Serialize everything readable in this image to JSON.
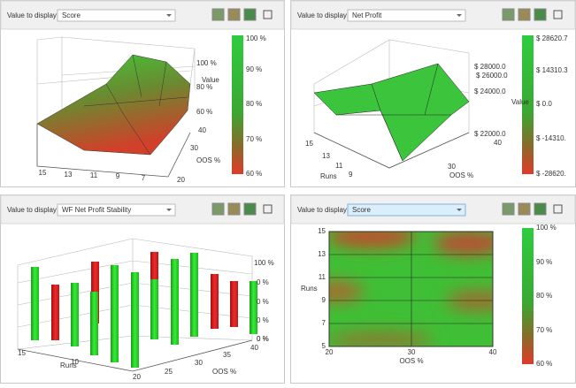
{
  "panels": [
    {
      "label": "Value to display:",
      "selected": "Score",
      "colorbar": [
        "100 %",
        "90 %",
        "80 %",
        "70 %",
        "60 %"
      ],
      "value_axis": "Value",
      "value_ticks": [
        "100 %",
        "80 %",
        "60 %"
      ],
      "runs_ticks": [
        "15",
        "13",
        "11",
        "9",
        "7"
      ],
      "oos_axis": "OOS %",
      "oos_ticks": [
        "40",
        "30",
        "20"
      ]
    },
    {
      "label": "Value to display:",
      "selected": "Net Profit",
      "colorbar": [
        "$ 28620.7",
        "$ 14310.3",
        "$ 0.0",
        "$ -14310.",
        "$ -28620."
      ],
      "value_axis": "Value",
      "value_ticks": [
        "$ 28000.0",
        "$ 26000.0",
        "$ 24000.0",
        "$ 22000.0"
      ],
      "runs_axis": "Runs",
      "runs_ticks": [
        "15",
        "13",
        "11",
        "9"
      ],
      "oos_axis": "OOS %",
      "oos_ticks": [
        "30",
        "40"
      ]
    },
    {
      "label": "Value to display:",
      "selected": "WF Net Profit Stability",
      "value_ticks": [
        "100 %",
        "0 %",
        "0 %",
        "0 %",
        "0 %",
        "0 %"
      ],
      "runs_axis": "Runs",
      "runs_ticks": [
        "15",
        "10"
      ],
      "oos_axis": "OOS %",
      "oos_ticks": [
        "20",
        "25",
        "30",
        "35",
        "40"
      ]
    },
    {
      "label": "Value to display:",
      "selected": "Score",
      "colorbar": [
        "100 %",
        "90 %",
        "80 %",
        "70 %",
        "60 %"
      ],
      "runs_axis": "Runs",
      "runs_ticks": [
        "15",
        "13",
        "11",
        "9",
        "7",
        "5"
      ],
      "oos_axis": "OOS %",
      "oos_ticks": [
        "20",
        "30",
        "40"
      ]
    }
  ]
}
